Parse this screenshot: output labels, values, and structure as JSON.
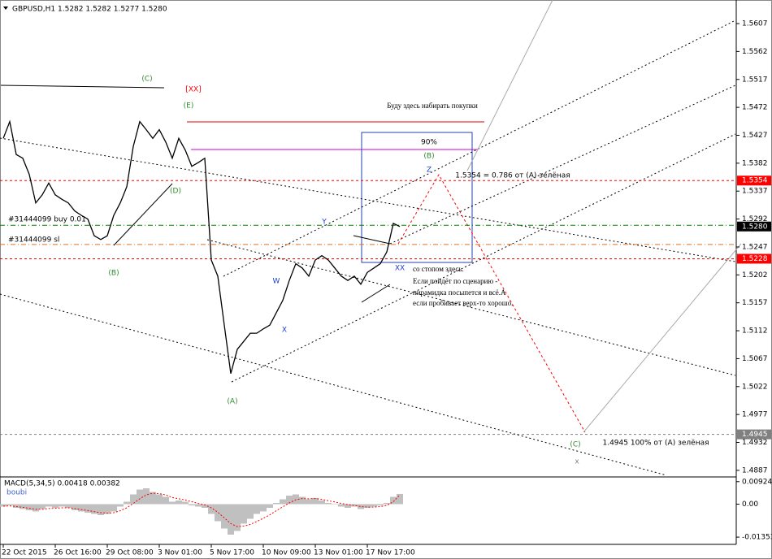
{
  "chart_data": [
    {
      "type": "line",
      "title": "GBPUSD,H1  1.5282 1.5282 1.5277 1.5280",
      "categories": [
        "22 Oct 2015",
        null,
        null,
        null,
        null,
        null,
        null,
        null,
        "26 Oct 16:00",
        null,
        null,
        null,
        null,
        null,
        null,
        null,
        "29 Oct 08:00",
        null,
        null,
        null,
        null,
        null,
        null,
        null,
        "3 Nov 01:00",
        null,
        null,
        null,
        null,
        null,
        null,
        null,
        "5 Nov 17:00",
        null,
        null,
        null,
        null,
        null,
        null,
        null,
        "10 Nov 09:00",
        null,
        null,
        null,
        null,
        null,
        null,
        null,
        "13 Nov 01:00",
        null,
        null,
        null,
        null,
        null,
        null,
        null,
        "17 Nov 17:00",
        null,
        null,
        null,
        null,
        null
      ],
      "series": [
        {
          "color": "#000000",
          "values": [
            1.5422,
            1.5449,
            1.5396,
            1.539,
            1.5364,
            1.5318,
            1.5331,
            1.535,
            1.5331,
            1.5324,
            1.5318,
            1.5305,
            1.5298,
            1.5292,
            1.5265,
            1.5259,
            1.5265,
            1.5298,
            1.5318,
            1.5344,
            1.5409,
            1.5449,
            1.5436,
            1.5422,
            1.5436,
            1.5416,
            1.539,
            1.5422,
            1.5403,
            1.5377,
            1.5383,
            1.539,
            1.5226,
            1.52,
            1.5121,
            1.5043,
            1.5082,
            1.5095,
            1.5108,
            1.5108,
            1.5115,
            1.5121,
            1.5141,
            1.5161,
            1.5193,
            1.522,
            1.5213,
            1.52,
            1.5226,
            1.5233,
            1.5226,
            1.5213,
            1.52,
            1.5193,
            1.52,
            1.5187,
            1.5206,
            1.5213,
            1.522,
            1.5239,
            1.5285,
            1.528
          ]
        }
      ],
      "ylim": [
        1.4879,
        1.5645
      ],
      "yticks": [
        1.5607,
        1.5562,
        1.5517,
        1.5472,
        1.5427,
        1.5382,
        1.5337,
        1.5292,
        1.5247,
        1.5202,
        1.5157,
        1.5112,
        1.5067,
        1.5022,
        1.4977,
        1.4932,
        1.4887
      ],
      "levels": [
        {
          "value": 1.5354,
          "label": "1.5354",
          "color": "#ff0000"
        },
        {
          "value": 1.5228,
          "label": "1.5228",
          "color": "#ff0000"
        },
        {
          "value": 1.4945,
          "label": "1.4945",
          "color": "#808080"
        },
        {
          "value": 1.5282,
          "color": "#008000"
        },
        {
          "value": 1.5251,
          "color": "#e07020"
        }
      ],
      "last_price": {
        "value": 1.528,
        "label": "1.5280"
      },
      "annotations": [
        {
          "text": "(C)",
          "color": "#2e8b2e"
        },
        {
          "text": "[XX]",
          "color": "#ff0000"
        },
        {
          "text": "(E)",
          "color": "#2e8b2e"
        },
        {
          "text": "(D)",
          "color": "#2e8b2e"
        },
        {
          "text": "(B)",
          "color": "#2e8b2e"
        },
        {
          "text": "(A)",
          "color": "#2e8b2e"
        },
        {
          "text": "Y",
          "color": "#2040d0"
        },
        {
          "text": "W",
          "color": "#2040d0"
        },
        {
          "text": "X",
          "color": "#2040d0"
        },
        {
          "text": "Z",
          "color": "#2040d0"
        },
        {
          "text": "(B)",
          "color": "#2e8b2e"
        },
        {
          "text": "XX",
          "color": "#2040d0"
        },
        {
          "text": "(C)",
          "color": "#2e8b2e"
        },
        {
          "text": "x",
          "color": "#808080"
        },
        {
          "text": "90%",
          "color": "#000000"
        },
        {
          "text": "Буду здесь набирать покупки",
          "color": "#000000"
        },
        {
          "text": "1.5354 = 0.786  от (A) зелёная",
          "color": "#000000"
        },
        {
          "text": "#31444099 buy 0.01",
          "color": "#000000"
        },
        {
          "text": "#31444099 sl",
          "color": "#000000"
        },
        {
          "text": "со  стопом здесь.",
          "color": "#000000"
        },
        {
          "text": "Если пойдёт по сценарию -",
          "color": "#000000"
        },
        {
          "text": "пирамидка посыпется и всё.А",
          "color": "#000000"
        },
        {
          "text": "если пробивает верх-то хорошо.",
          "color": "#000000"
        },
        {
          "text": "1.4945 100% от (A) зелёная",
          "color": "#000000"
        }
      ]
    },
    {
      "type": "bar",
      "title": "MACD(5,34,5) 0.00418 0.00382",
      "subtitle": "boubi",
      "series": [
        {
          "type": "bar",
          "color": "#c0c0c0",
          "values": [
            -0.001,
            -0.0005,
            -0.0015,
            -0.002,
            -0.0025,
            -0.003,
            -0.002,
            -0.001,
            -0.0015,
            -0.001,
            -0.0015,
            -0.0025,
            -0.003,
            -0.0035,
            -0.004,
            -0.0045,
            -0.004,
            -0.003,
            -0.001,
            0.001,
            0.004,
            0.006,
            0.0065,
            0.005,
            0.004,
            0.003,
            0.001,
            0.0015,
            0.001,
            -0.0005,
            -0.001,
            -0.0015,
            -0.004,
            -0.007,
            -0.01,
            -0.0125,
            -0.011,
            -0.008,
            -0.006,
            -0.004,
            -0.003,
            -0.0015,
            0.0005,
            0.002,
            0.0035,
            0.004,
            0.003,
            0.002,
            0.0025,
            0.0015,
            0.0005,
            0,
            -0.001,
            -0.0015,
            -0.001,
            -0.002,
            -0.0015,
            -0.001,
            -0.0005,
            0.0005,
            0.003,
            0.00418
          ]
        },
        {
          "type": "line",
          "color": "#ff0000",
          "values": [
            -0.0008,
            -0.0007,
            -0.001,
            -0.0013,
            -0.0017,
            -0.0021,
            -0.0021,
            -0.0018,
            -0.0017,
            -0.0015,
            -0.0015,
            -0.0018,
            -0.0022,
            -0.0026,
            -0.0031,
            -0.0035,
            -0.0037,
            -0.0035,
            -0.0027,
            -0.0015,
            0.0003,
            0.0022,
            0.0038,
            0.0045,
            0.0043,
            0.0038,
            0.0027,
            0.0022,
            0.0017,
            0.001,
            0.0003,
            -0.0003,
            -0.0015,
            -0.0033,
            -0.0056,
            -0.008,
            -0.0092,
            -0.009,
            -0.0083,
            -0.0071,
            -0.0058,
            -0.0044,
            -0.0027,
            -0.0011,
            0.0005,
            0.0018,
            0.0023,
            0.0022,
            0.0023,
            0.002,
            0.0014,
            0.0009,
            0.0003,
            -0.0002,
            -0.0005,
            -0.001,
            -0.0012,
            -0.0012,
            -0.001,
            -0.0005,
            0.001,
            0.00382
          ]
        }
      ],
      "ylim": [
        -0.0165,
        0.0105
      ],
      "yticks": [
        0.00924,
        {
          "value": 0,
          "label": "0.00"
        },
        -0.01353
      ]
    }
  ]
}
